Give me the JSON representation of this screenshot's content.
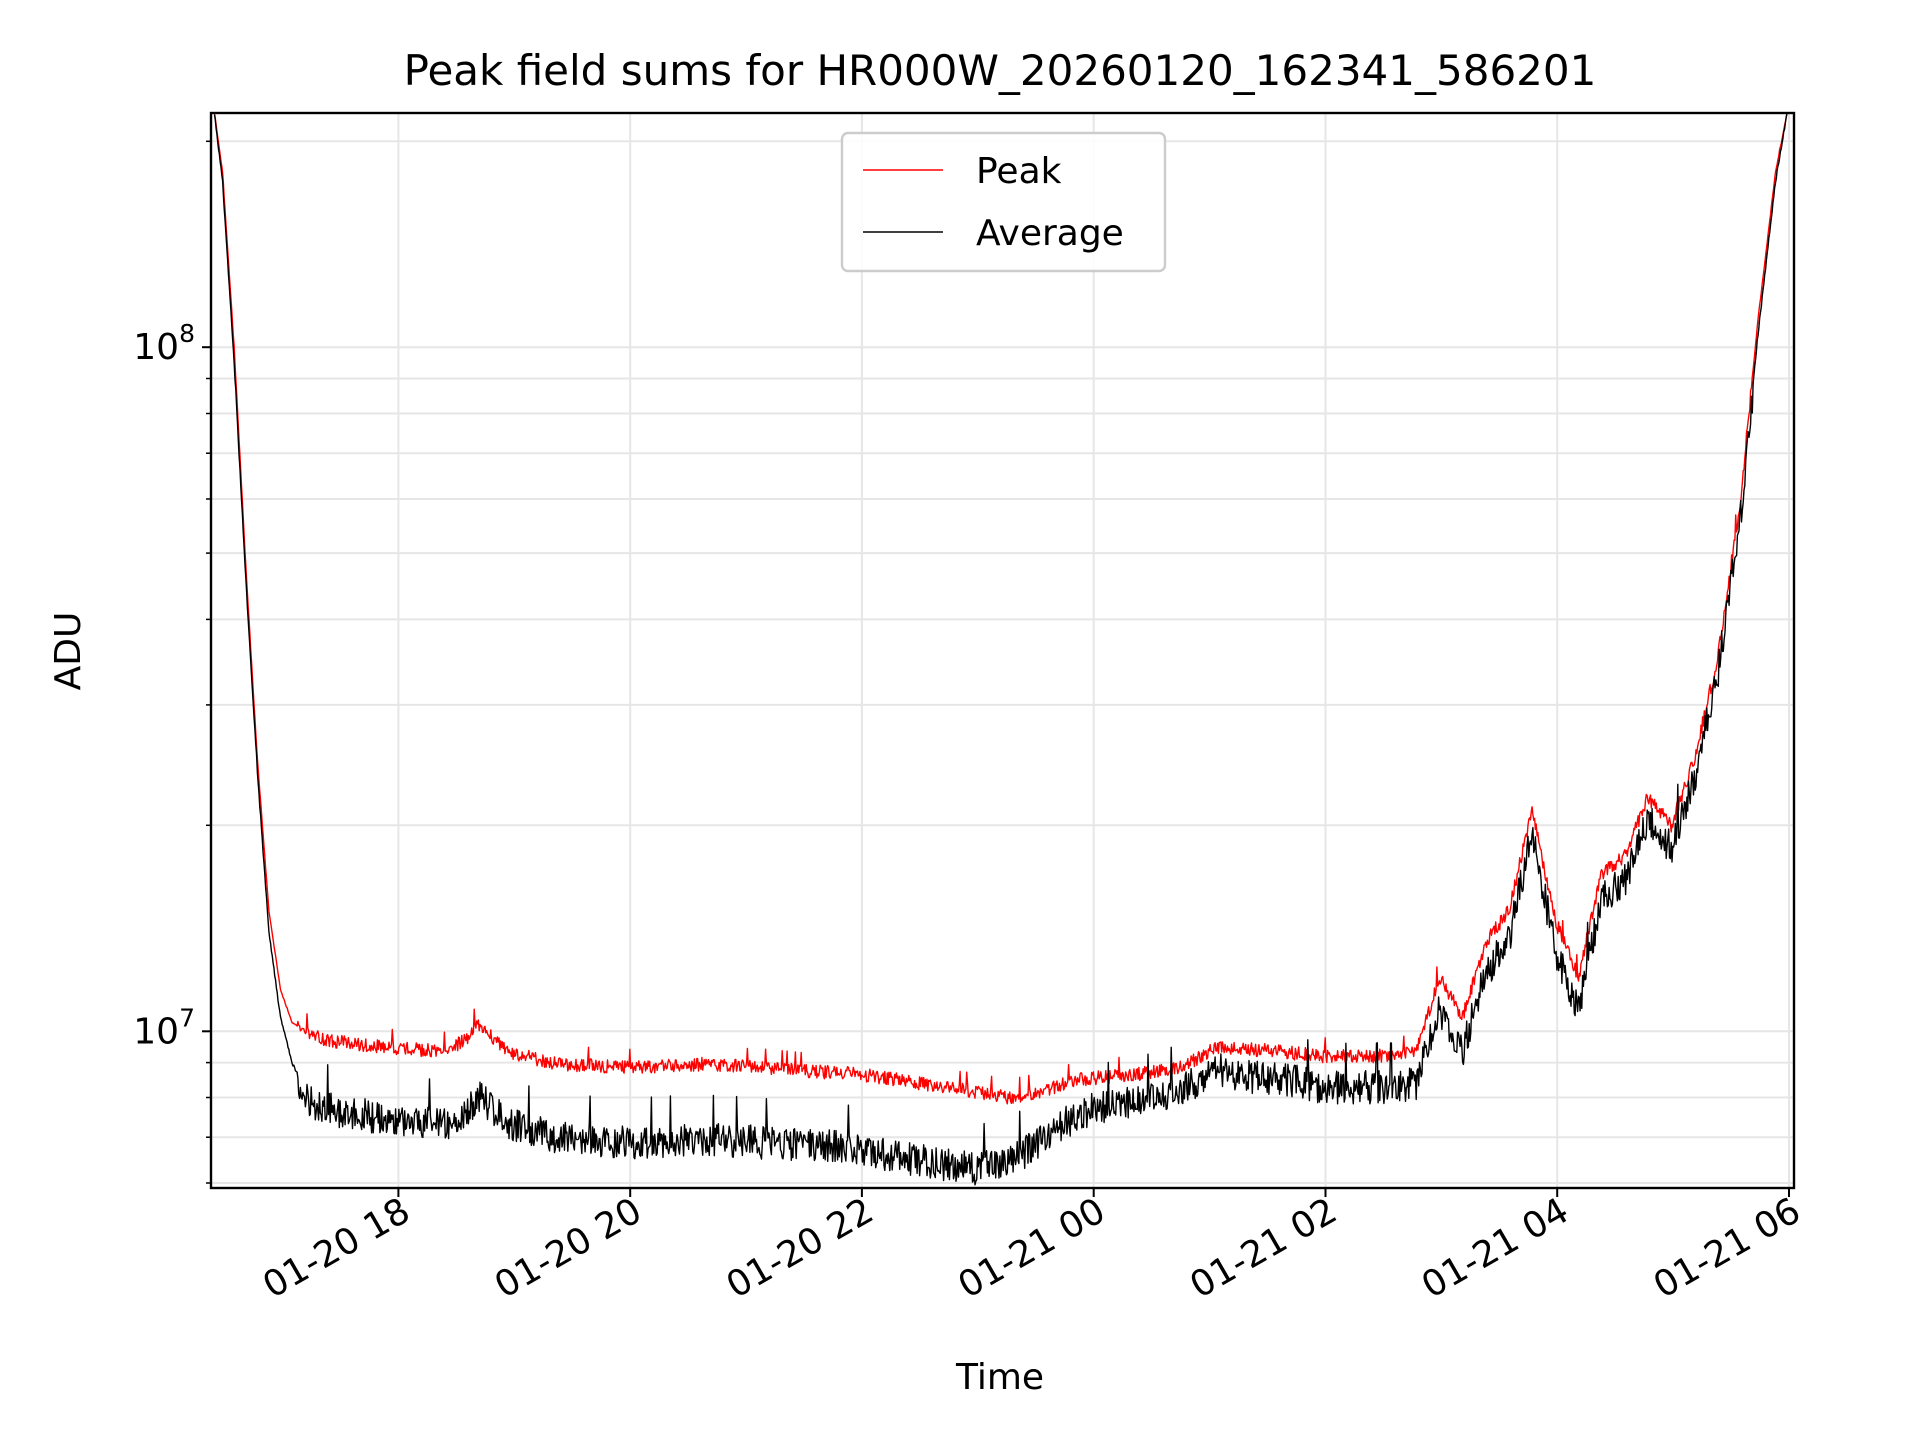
{
  "chart_data": {
    "type": "line",
    "title": "Peak field sums for HR000W_20260120_162341_586201",
    "xlabel": "Time",
    "ylabel": "ADU",
    "yscale": "log",
    "grid": true,
    "legend_position": "upper-center",
    "x_unit": "hours after 01-20 16:23",
    "xlim": [
      0,
      13.66
    ],
    "ylim": [
      5900000,
      220000000
    ],
    "x_ticks": [
      {
        "label": "01-20 18",
        "value": 1.617
      },
      {
        "label": "01-20 20",
        "value": 3.617
      },
      {
        "label": "01-20 22",
        "value": 5.617
      },
      {
        "label": "01-21 00",
        "value": 7.617
      },
      {
        "label": "01-21 02",
        "value": 9.617
      },
      {
        "label": "01-21 04",
        "value": 11.617
      },
      {
        "label": "01-21 06",
        "value": 13.617
      }
    ],
    "y_ticks": [
      {
        "base": "10",
        "exp": "7",
        "value": 10000000
      },
      {
        "base": "10",
        "exp": "8",
        "value": 100000000
      }
    ],
    "y_minor_ticks": [
      6000000,
      7000000,
      8000000,
      9000000,
      20000000,
      30000000,
      40000000,
      50000000,
      60000000,
      70000000,
      80000000,
      90000000,
      200000000
    ],
    "series": [
      {
        "name": "Peak",
        "color": "#ff0000",
        "x": [
          0.03,
          0.1,
          0.2,
          0.3,
          0.4,
          0.5,
          0.6,
          0.7,
          0.8,
          0.9,
          1.0,
          1.2,
          1.4,
          1.6,
          1.8,
          2.0,
          2.2,
          2.3,
          2.4,
          2.5,
          2.6,
          2.8,
          3.0,
          3.3,
          3.6,
          3.9,
          4.2,
          4.5,
          4.8,
          5.1,
          5.4,
          5.7,
          6.0,
          6.3,
          6.6,
          6.9,
          7.2,
          7.5,
          7.8,
          8.1,
          8.4,
          8.7,
          9.0,
          9.3,
          9.6,
          9.9,
          10.2,
          10.4,
          10.6,
          10.8,
          11.0,
          11.2,
          11.4,
          11.6,
          11.8,
          12.0,
          12.2,
          12.4,
          12.6,
          12.8,
          13.0,
          13.2,
          13.35,
          13.5,
          13.6
        ],
        "values": [
          220000000,
          180000000,
          100000000,
          48000000,
          25000000,
          15000000,
          11500000,
          10300000,
          10000000,
          9900000,
          9700000,
          9600000,
          9500000,
          9450000,
          9400000,
          9350000,
          9700000,
          10300000,
          9900000,
          9500000,
          9300000,
          9100000,
          8950000,
          8900000,
          8850000,
          8900000,
          8950000,
          8900000,
          8850000,
          8750000,
          8700000,
          8600000,
          8450000,
          8300000,
          8150000,
          8000000,
          8200000,
          8500000,
          8600000,
          8700000,
          8900000,
          9500000,
          9400000,
          9300000,
          9200000,
          9200000,
          9200000,
          9300000,
          12000000,
          10500000,
          13500000,
          15000000,
          21000000,
          14500000,
          12000000,
          17000000,
          18000000,
          22000000,
          20000000,
          25000000,
          35000000,
          60000000,
          110000000,
          180000000,
          220000000
        ]
      },
      {
        "name": "Average",
        "color": "#000000",
        "x": [
          0.03,
          0.1,
          0.2,
          0.3,
          0.4,
          0.5,
          0.6,
          0.7,
          0.8,
          0.9,
          1.0,
          1.2,
          1.4,
          1.6,
          1.8,
          2.0,
          2.2,
          2.3,
          2.4,
          2.5,
          2.6,
          2.8,
          3.0,
          3.3,
          3.6,
          3.9,
          4.2,
          4.5,
          4.8,
          5.1,
          5.4,
          5.7,
          6.0,
          6.3,
          6.6,
          6.9,
          7.2,
          7.5,
          7.8,
          8.1,
          8.4,
          8.7,
          9.0,
          9.3,
          9.6,
          9.9,
          10.2,
          10.4,
          10.6,
          10.8,
          11.0,
          11.2,
          11.4,
          11.6,
          11.8,
          12.0,
          12.2,
          12.4,
          12.6,
          12.8,
          13.0,
          13.2,
          13.35,
          13.5,
          13.6
        ],
        "values": [
          220000000,
          175000000,
          95000000,
          46000000,
          24000000,
          14000000,
          10500000,
          9000000,
          8300000,
          8000000,
          7900000,
          7800000,
          7700000,
          7600000,
          7550000,
          7500000,
          7700000,
          8300000,
          8000000,
          7700000,
          7500000,
          7300000,
          7200000,
          7100000,
          7050000,
          7100000,
          7150000,
          7100000,
          7050000,
          7000000,
          6950000,
          6800000,
          6700000,
          6550000,
          6450000,
          6600000,
          7200000,
          7800000,
          8000000,
          8200000,
          8500000,
          9000000,
          8800000,
          8700000,
          8500000,
          8500000,
          8500000,
          8600000,
          11000000,
          9600000,
          12500000,
          14000000,
          20000000,
          13500000,
          11000000,
          16000000,
          17000000,
          21000000,
          19000000,
          24000000,
          34000000,
          58000000,
          105000000,
          175000000,
          220000000
        ]
      }
    ]
  }
}
